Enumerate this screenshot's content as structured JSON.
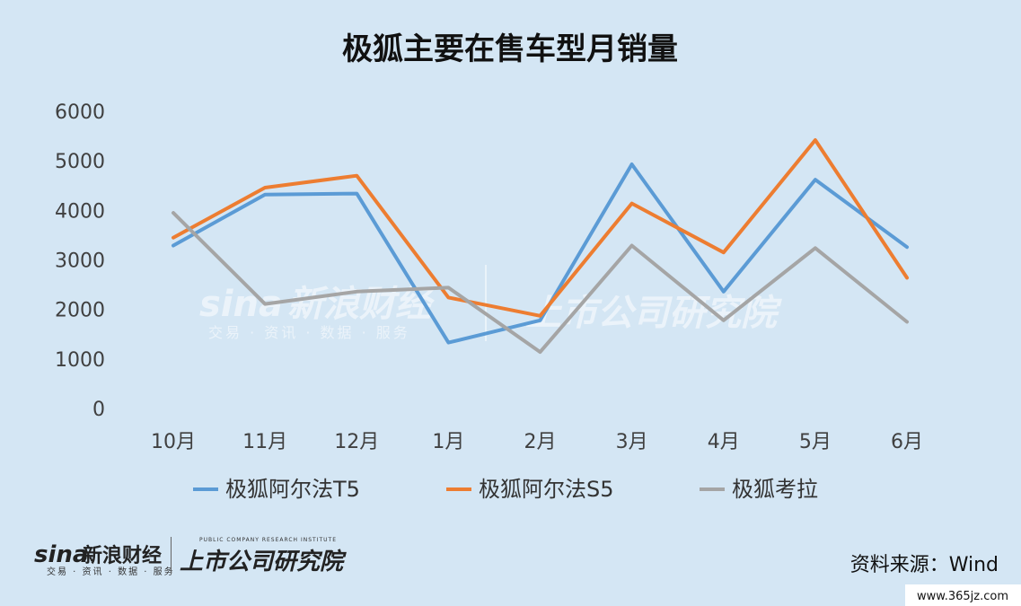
{
  "chart_data": {
    "type": "line",
    "title": "极狐主要在售车型月销量",
    "categories": [
      "10月",
      "11月",
      "12月",
      "1月",
      "2月",
      "3月",
      "4月",
      "5月",
      "6月"
    ],
    "ylim": [
      0,
      6000
    ],
    "yticks": [
      0,
      1000,
      2000,
      3000,
      4000,
      5000,
      6000
    ],
    "grid": false,
    "legend_position": "bottom",
    "series": [
      {
        "name": "极狐阿尔法T5",
        "color": "#5b9bd5",
        "values": [
          3290,
          4320,
          4340,
          1330,
          1780,
          4930,
          2360,
          4620,
          3260
        ]
      },
      {
        "name": "极狐阿尔法S5",
        "color": "#ed7d31",
        "values": [
          3450,
          4460,
          4700,
          2240,
          1870,
          4140,
          3150,
          5420,
          2640
        ]
      },
      {
        "name": "极狐考拉",
        "color": "#a5a5a5",
        "values": [
          3950,
          2110,
          2360,
          2440,
          1140,
          3290,
          1780,
          3240,
          1750
        ]
      }
    ]
  },
  "source_label": "资料来源：Wind",
  "watermark": {
    "brand": "新浪财经",
    "sina": "sina",
    "tagline": "交易 · 资讯 · 数据 · 服务",
    "institute": "上市公司研究院",
    "institute_en": "PUBLIC COMPANY RESEARCH INSTITUTE"
  },
  "site_url": "www.365jz.com"
}
